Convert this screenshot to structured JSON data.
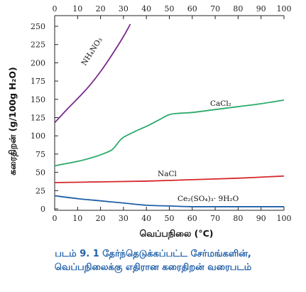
{
  "chart_data": {
    "type": "line",
    "xlabel": "வெப்பநிலை (°C)",
    "ylabel": "கரைதிறன் (g/100g H₂O)",
    "xlim": [
      0,
      100
    ],
    "ylim": [
      0,
      250
    ],
    "x_ticks": [
      0,
      10,
      20,
      30,
      40,
      50,
      60,
      70,
      80,
      90,
      100
    ],
    "y_ticks": [
      0,
      25,
      50,
      75,
      100,
      125,
      150,
      175,
      200,
      225,
      250
    ],
    "x_axis_at_top_and_bottom": true,
    "grid": false,
    "series": [
      {
        "name": "NH₄NO₃",
        "color": "#7b2a8e",
        "x": [
          0,
          5,
          10,
          15,
          20,
          25,
          30,
          33
        ],
        "y": [
          118,
          135,
          151,
          168,
          188,
          211,
          236,
          253
        ]
      },
      {
        "name": "CaCl₂",
        "color": "#2aaa6a",
        "x": [
          0,
          5,
          10,
          15,
          20,
          25,
          28,
          30,
          35,
          40,
          45,
          50,
          55,
          60,
          70,
          80,
          90,
          100
        ],
        "y": [
          59,
          62,
          65,
          69,
          74,
          81,
          92,
          98,
          106,
          113,
          121,
          129,
          131,
          132,
          136,
          140,
          144,
          149
        ]
      },
      {
        "name": "NaCl",
        "color": "#d7282d",
        "x": [
          0,
          20,
          40,
          60,
          80,
          100
        ],
        "y": [
          36,
          37,
          38,
          40,
          42,
          45
        ]
      },
      {
        "name": "Ce₂(SO₄)₃· 9H₂O",
        "color": "#1f5fa8",
        "x": [
          0,
          10,
          20,
          30,
          40,
          50,
          60,
          80,
          100
        ],
        "y": [
          18,
          14,
          11,
          8,
          5,
          4,
          3,
          3,
          3
        ]
      }
    ]
  },
  "caption": {
    "line1": "படம் 9. 1 தேர்ந்தெடுக்கப்பட்ட சேர்மங்களின்,",
    "line2": "வெப்பநிலைக்கு எதிரான கரைதிறன் வரைபடம்"
  }
}
